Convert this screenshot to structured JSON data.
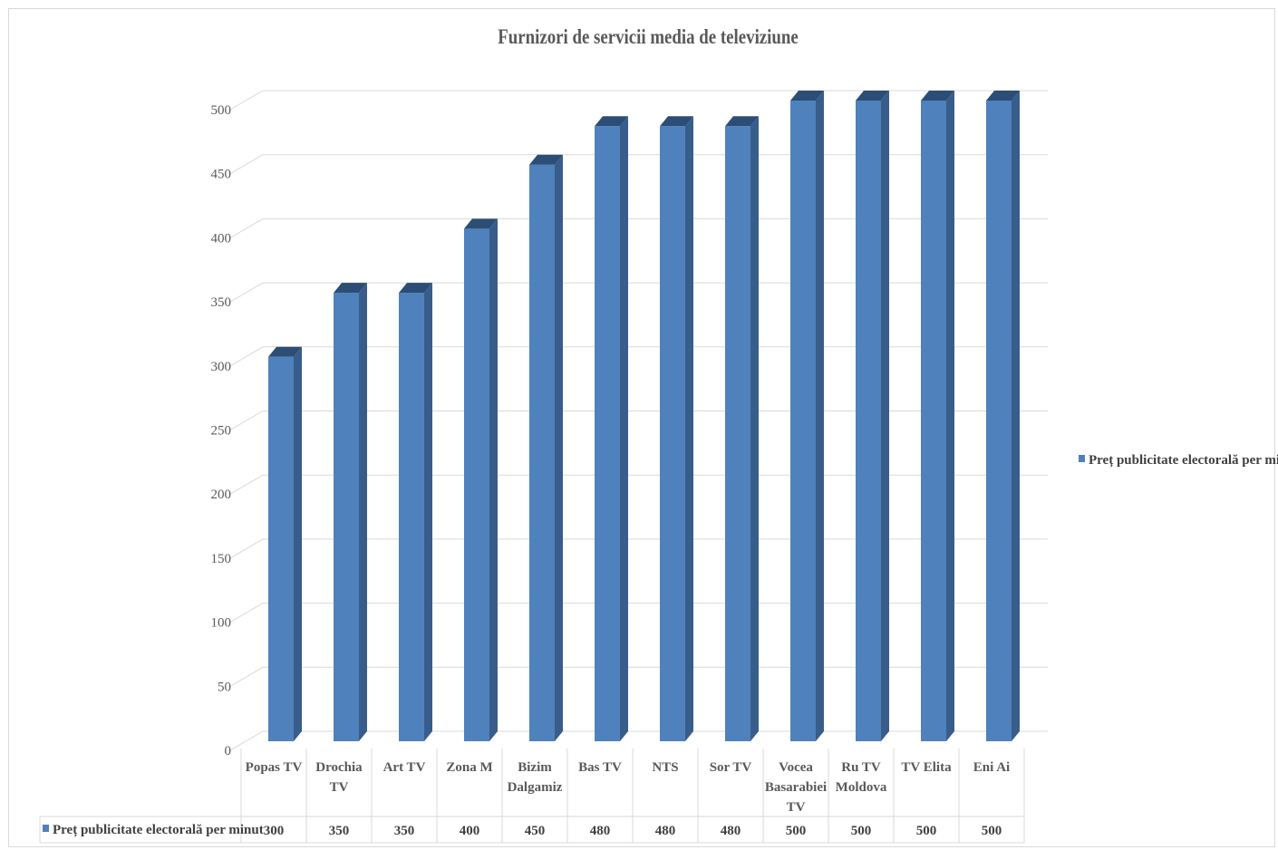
{
  "chart_data": {
    "type": "bar",
    "title": "Furnizori de servicii media de televiziune",
    "categories": [
      [
        "Popas TV"
      ],
      [
        "Drochia",
        "TV"
      ],
      [
        "Art TV"
      ],
      [
        "Zona M"
      ],
      [
        "Bizim",
        "Dalgamiz"
      ],
      [
        "Bas TV"
      ],
      [
        "NTS"
      ],
      [
        "Sor TV"
      ],
      [
        "Vocea",
        "Basarabiei",
        "TV"
      ],
      [
        "Ru TV",
        "Moldova"
      ],
      [
        "TV Elita"
      ],
      [
        "Eni Ai"
      ]
    ],
    "series": [
      {
        "name": "Preț publicitate electorală per minut",
        "values": [
          300,
          350,
          350,
          400,
          450,
          480,
          480,
          480,
          500,
          500,
          500,
          500
        ],
        "color": "#4f81bd"
      }
    ],
    "value_labels": [
      "300",
      "350",
      "350",
      "400",
      "450",
      "480",
      "480",
      "480",
      "500",
      "500",
      "500",
      "500"
    ],
    "ylim": [
      0,
      500
    ],
    "yticks": [
      "0",
      "50",
      "100",
      "150",
      "200",
      "250",
      "300",
      "350",
      "400",
      "450",
      "500"
    ],
    "grid": true,
    "style": "3d-column",
    "legend_position": "right",
    "data_table": true
  }
}
